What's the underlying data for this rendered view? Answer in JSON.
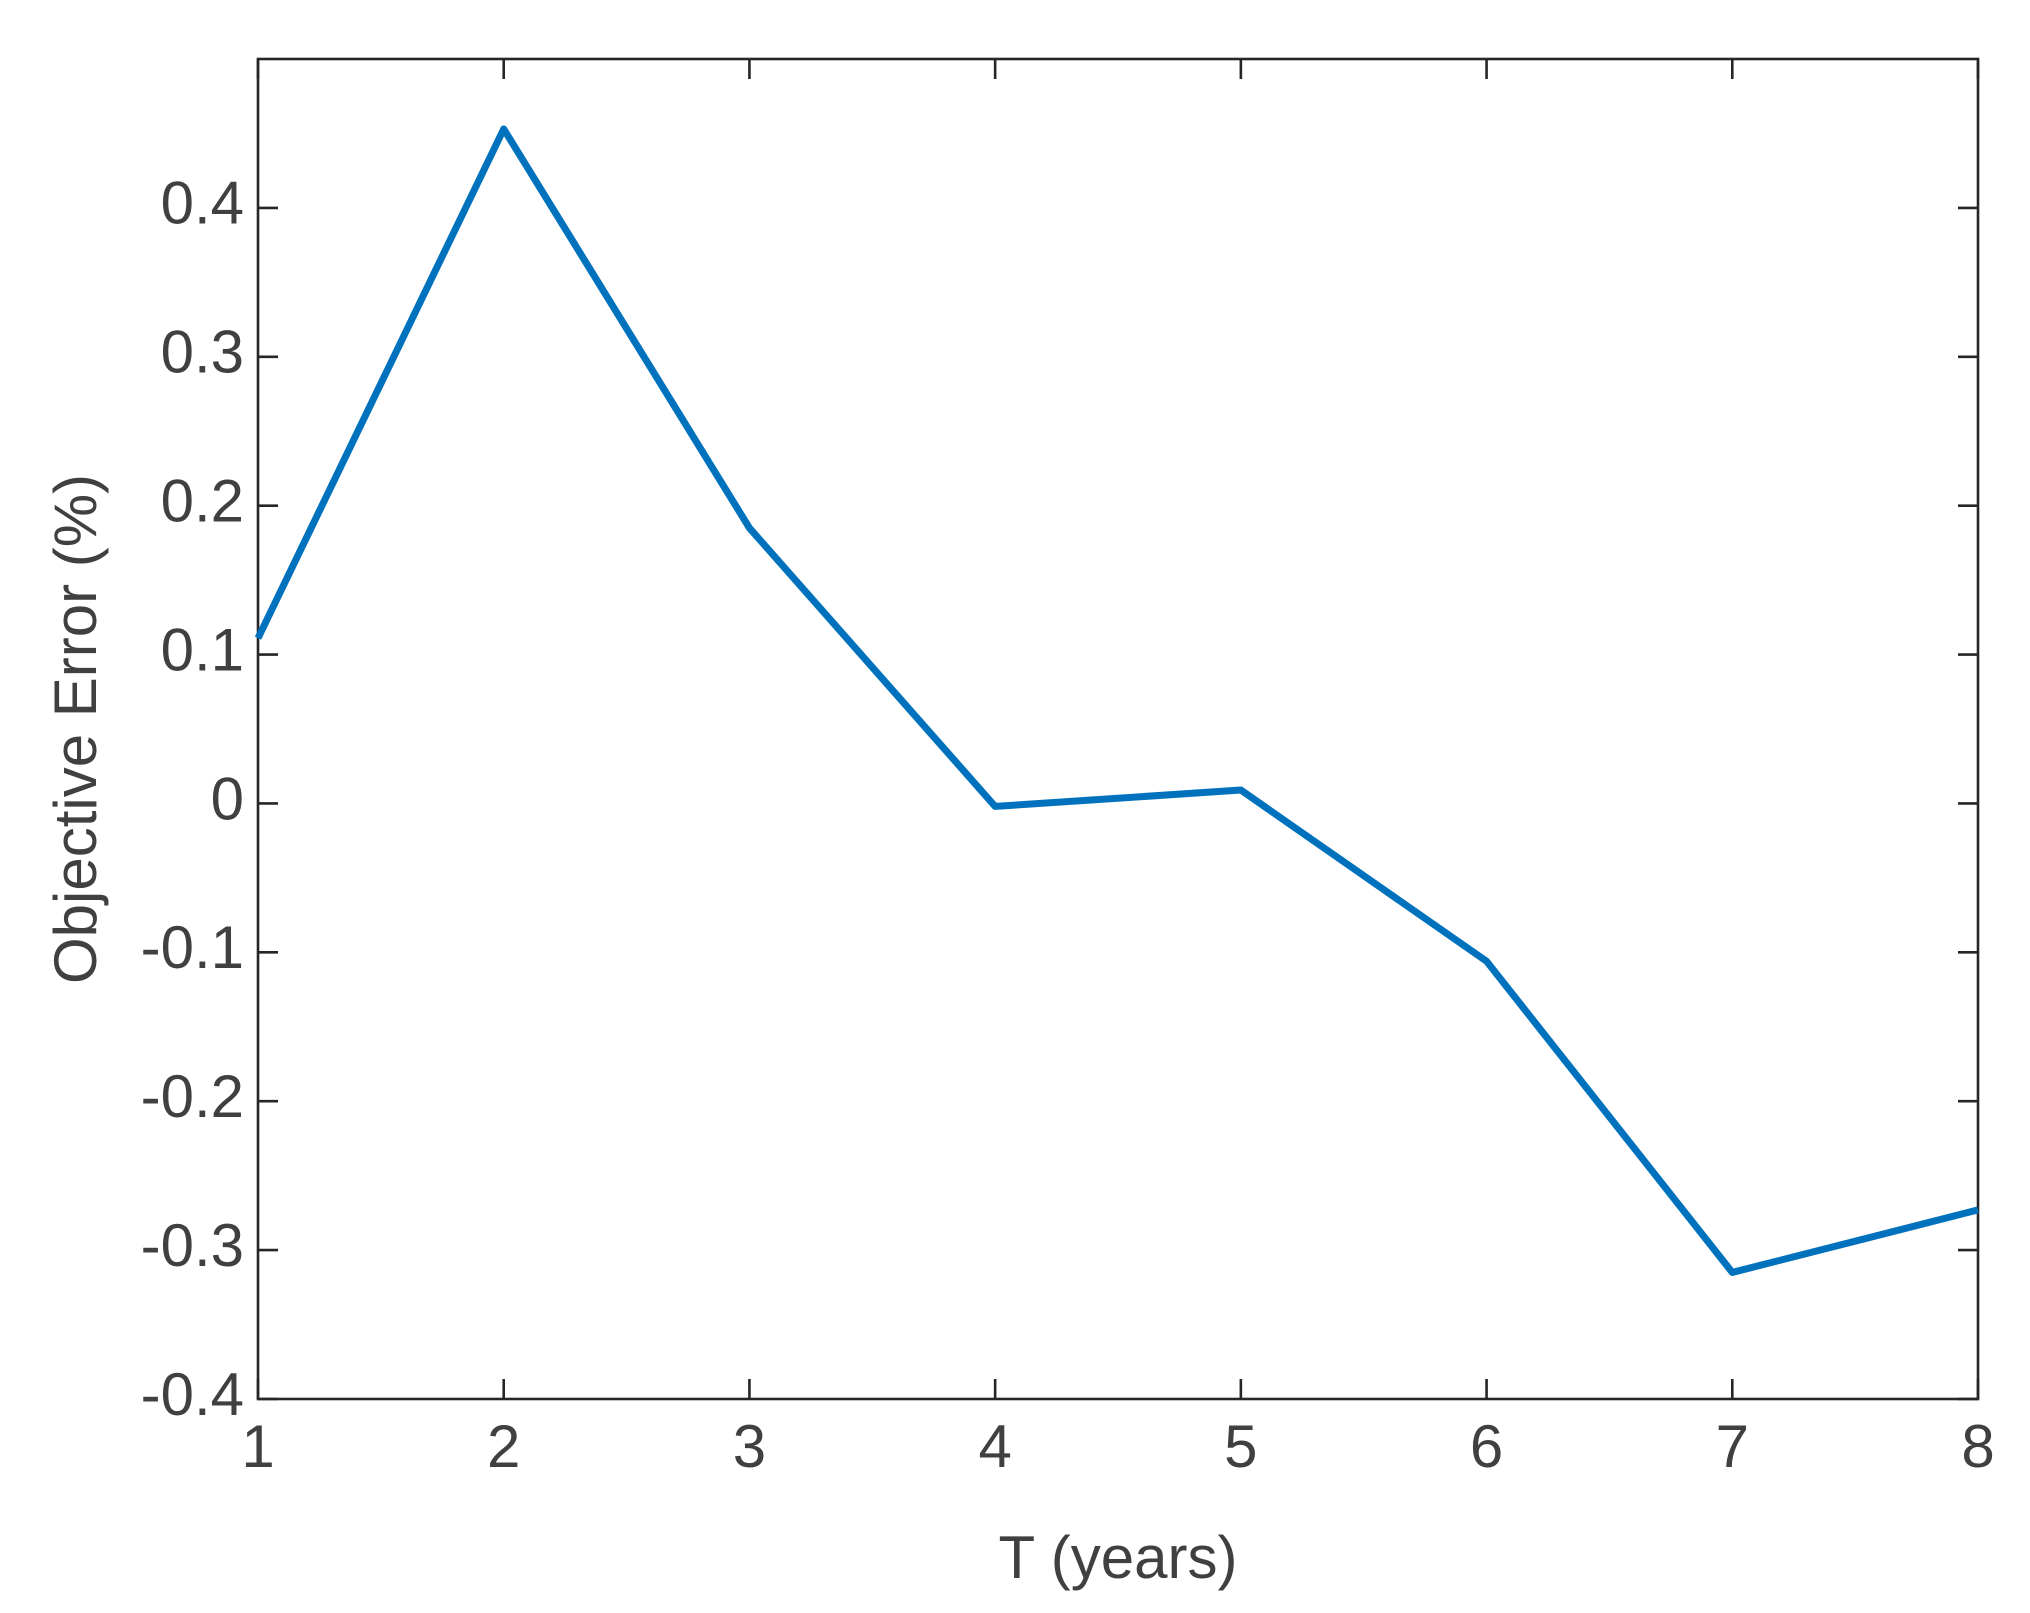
{
  "chart_data": {
    "type": "line",
    "xlabel": "T (years)",
    "ylabel": "Objective Error (%)",
    "x": [
      1,
      2,
      3,
      4,
      5,
      6,
      7,
      8
    ],
    "series": [
      {
        "color": "#0072bd",
        "values": [
          0.111,
          0.453,
          0.185,
          -0.002,
          0.009,
          -0.106,
          -0.315,
          -0.273
        ]
      }
    ],
    "xlim": [
      1,
      8
    ],
    "xticks": [
      1,
      2,
      3,
      4,
      5,
      6,
      7,
      8
    ],
    "ylim": [
      -0.4,
      0.5
    ],
    "yticks": [
      -0.4,
      -0.3,
      -0.2,
      -0.1,
      0,
      0.1,
      0.2,
      0.3,
      0.4
    ],
    "grid": false
  }
}
